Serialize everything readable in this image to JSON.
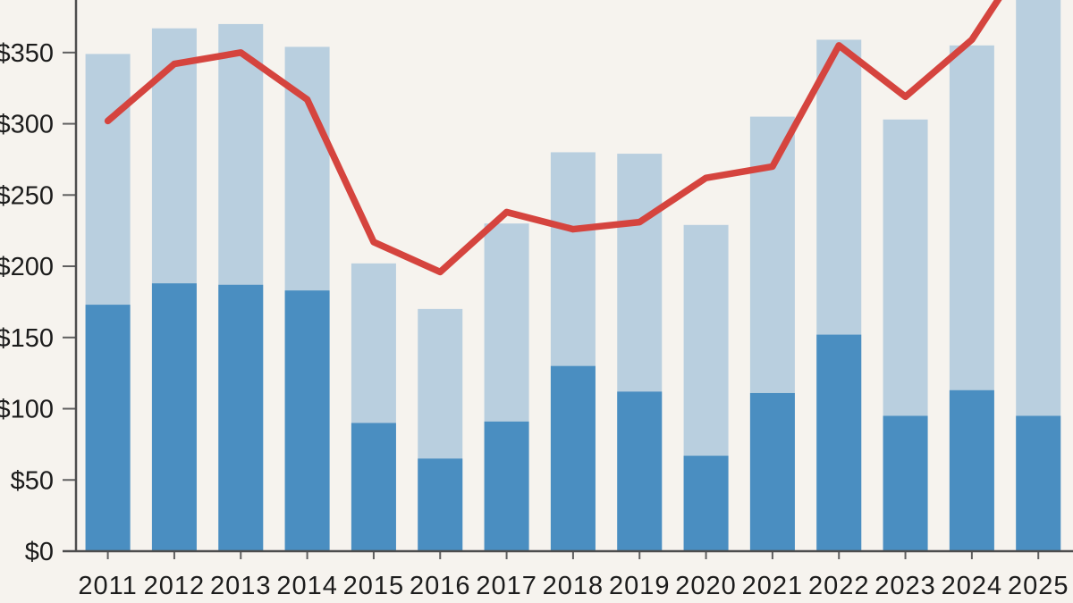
{
  "chart_data": {
    "type": "combo-stacked-bar-line",
    "title": "",
    "xlabel": "",
    "ylabel": "",
    "categories": [
      "2011",
      "2012",
      "2013",
      "2014",
      "2015",
      "2016",
      "2017",
      "2018",
      "2019",
      "2020",
      "2021",
      "2022",
      "2023",
      "2024",
      "2025"
    ],
    "series": [
      {
        "name": "total-bar",
        "type": "bar",
        "role": "light-blue full-height stacked total",
        "color": "#b9cfdf",
        "values": [
          349,
          367,
          370,
          354,
          202,
          170,
          230,
          280,
          279,
          229,
          305,
          359,
          303,
          355,
          400
        ]
      },
      {
        "name": "lower-segment-bar",
        "type": "bar",
        "role": "dark-blue lower stacked segment",
        "color": "#4a8ec1",
        "values": [
          173,
          188,
          187,
          183,
          90,
          65,
          91,
          130,
          112,
          67,
          111,
          152,
          95,
          113,
          95
        ]
      },
      {
        "name": "red-line",
        "type": "line",
        "color": "#d5443e",
        "stroke_width": 7.5,
        "values": [
          302,
          342,
          350,
          317,
          217,
          196,
          238,
          226,
          231,
          262,
          270,
          355,
          319,
          359,
          430
        ]
      }
    ],
    "y_axis": {
      "tick_values": [
        0,
        50,
        100,
        150,
        200,
        250,
        300,
        350
      ],
      "tick_labels": [
        "$0",
        "$50",
        "$100",
        "$150",
        "$200",
        "$250",
        "$300",
        "$350"
      ],
      "visible_range_top": 387
    },
    "layout_hints": {
      "background": "#f6f3ee",
      "axis_color": "#4d4d4d",
      "tick_color": "#5f5f5f",
      "text_color": "#1c1c1c",
      "grid": "off",
      "legend": "none",
      "note": "2025 bar and final red-line segment are clipped by the top edge of the image"
    }
  }
}
